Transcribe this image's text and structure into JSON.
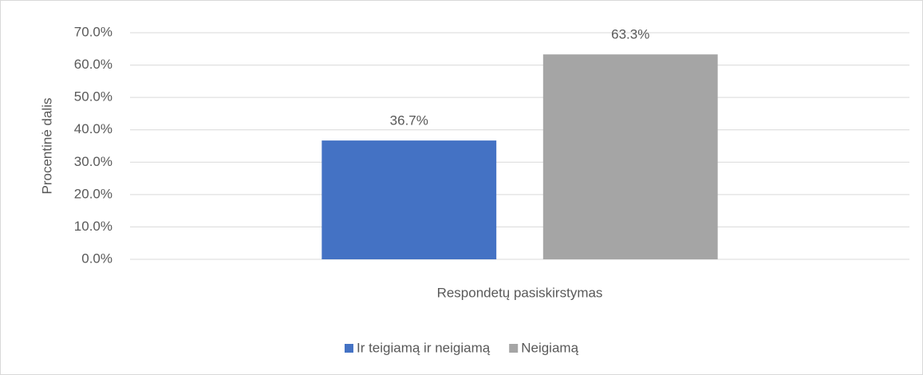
{
  "chart_data": {
    "type": "bar",
    "y_label": "Procentinė dalis",
    "categories": [
      "Respondetų pasiskirstymas"
    ],
    "series": [
      {
        "name": "Ir teigiamą ir neigiamą",
        "color": "#4472c4",
        "values": [
          36.7
        ],
        "value_labels": [
          "36.7%"
        ]
      },
      {
        "name": "Neigiamą",
        "color": "#a5a5a5",
        "values": [
          63.3
        ],
        "value_labels": [
          "63.3%"
        ]
      }
    ],
    "ylim": [
      0,
      70
    ],
    "yticks": [
      {
        "value": 0,
        "label": "0.0%"
      },
      {
        "value": 10,
        "label": "10.0%"
      },
      {
        "value": 20,
        "label": "20.0%"
      },
      {
        "value": 30,
        "label": "30.0%"
      },
      {
        "value": 40,
        "label": "40.0%"
      },
      {
        "value": 50,
        "label": "50.0%"
      },
      {
        "value": 60,
        "label": "60.0%"
      },
      {
        "value": 70,
        "label": "70.0%"
      }
    ],
    "grid": true,
    "legend": "bottom"
  }
}
